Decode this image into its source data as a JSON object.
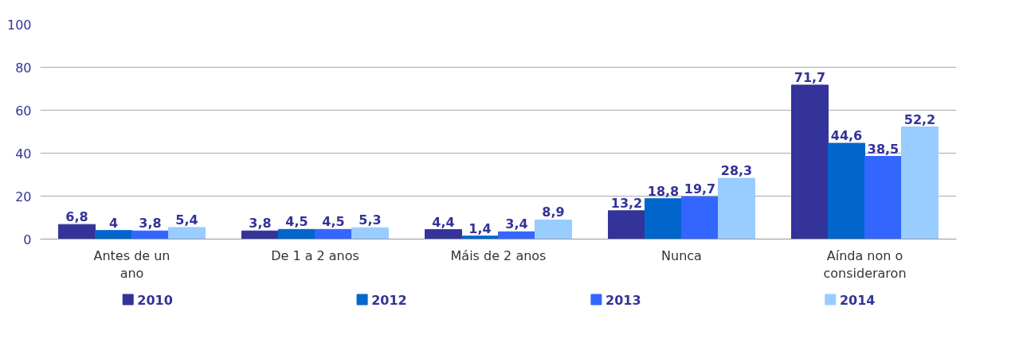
{
  "chart_data": {
    "type": "bar",
    "categories": [
      "Antes de un ano",
      "De 1 a 2 anos",
      "Máis de 2 anos",
      "Nunca",
      "Aínda non o consideraron"
    ],
    "series": [
      {
        "name": "2010",
        "color": "#333399",
        "values": [
          6.8,
          3.8,
          4.4,
          13.2,
          71.7
        ],
        "value_labels": [
          "6,8",
          "3,8",
          "4,4",
          "13,2",
          "71,7"
        ]
      },
      {
        "name": "2012",
        "color": "#0066cc",
        "values": [
          4,
          4.5,
          1.4,
          18.8,
          44.6
        ],
        "value_labels": [
          "4",
          "4,5",
          "1,4",
          "18,8",
          "44,6"
        ]
      },
      {
        "name": "2013",
        "color": "#3366ff",
        "values": [
          3.8,
          4.5,
          3.4,
          19.7,
          38.5
        ],
        "value_labels": [
          "3,8",
          "4,5",
          "3,4",
          "19,7",
          "38,5"
        ]
      },
      {
        "name": "2014",
        "color": "#99ccff",
        "values": [
          5.4,
          5.3,
          8.9,
          28.3,
          52.2
        ],
        "value_labels": [
          "5,4",
          "5,3",
          "8,9",
          "28,3",
          "52,2"
        ]
      }
    ],
    "ylim": [
      0,
      100
    ],
    "yticks": [
      0,
      20,
      40,
      60,
      80,
      100
    ],
    "grid": "y",
    "legend": "bottom"
  }
}
